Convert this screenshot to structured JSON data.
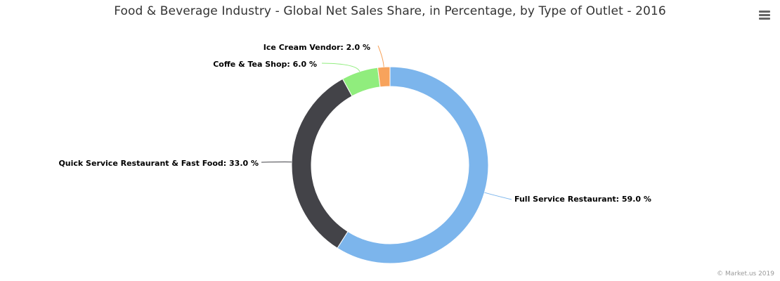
{
  "chart_data": {
    "type": "pie",
    "variant": "donut",
    "title": "Food & Beverage Industry - Global Net Sales Share, in Percentage, by Type of Outlet - 2016",
    "value_suffix": " %",
    "slices": [
      {
        "label": "Full Service Restaurant",
        "value": 59.0,
        "color": "#7cb5ec"
      },
      {
        "label": "Quick Service Restaurant & Fast Food",
        "value": 33.0,
        "color": "#434348"
      },
      {
        "label": "Coffe & Tea Shop",
        "value": 6.0,
        "color": "#90ed7d"
      },
      {
        "label": "Ice Cream Vendor",
        "value": 2.0,
        "color": "#f7a35c"
      }
    ],
    "legend": "none"
  },
  "menu": {
    "icon": "hamburger-menu-icon"
  },
  "credits": "© Market.us 2019"
}
